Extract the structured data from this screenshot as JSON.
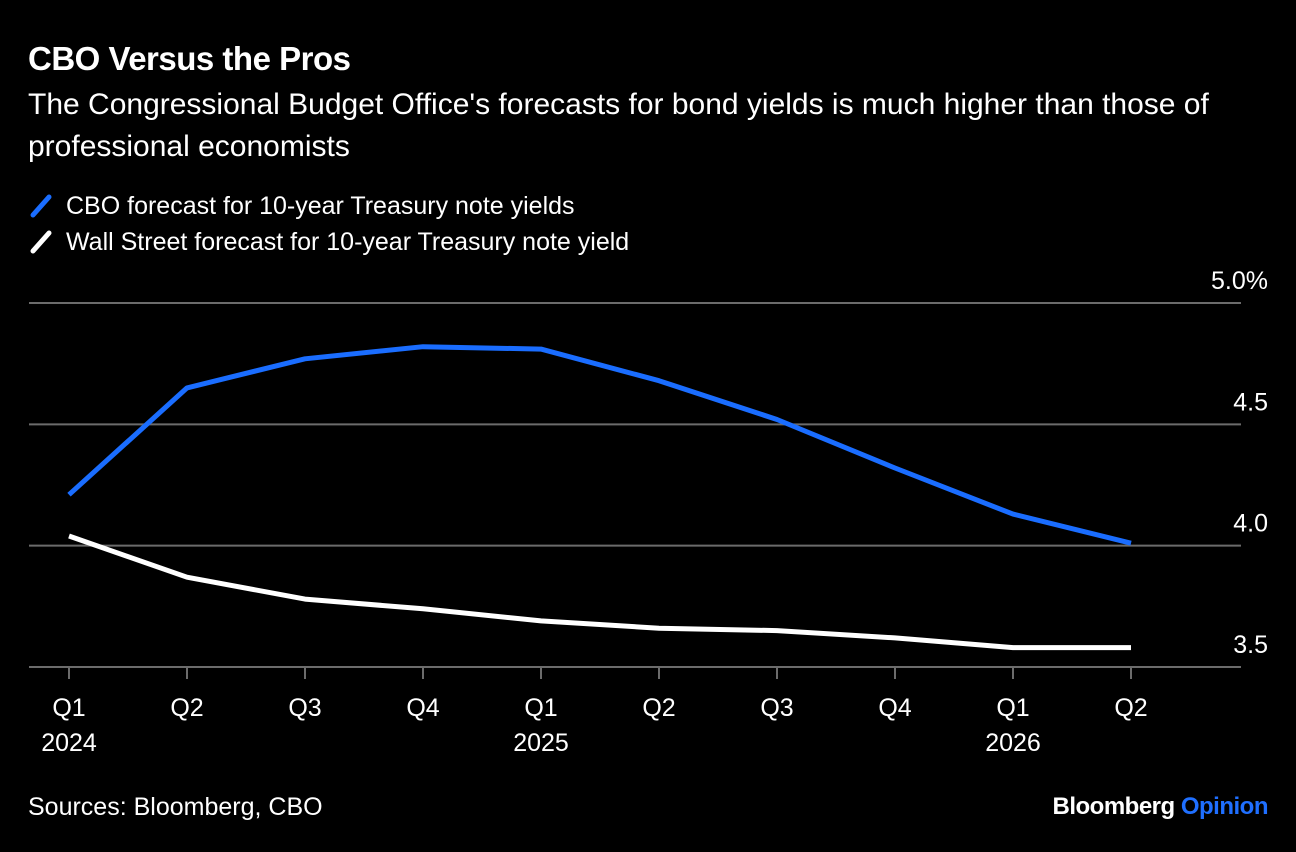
{
  "header": {
    "title": "CBO Versus the Pros",
    "subtitle": "The Congressional Budget Office's forecasts for bond yields is much higher than those of professional economists"
  },
  "legend": {
    "items": [
      {
        "label": "CBO forecast for 10-year Treasury note yields",
        "color": "#1a6dff"
      },
      {
        "label": "Wall Street forecast for 10-year Treasury note yield",
        "color": "#ffffff"
      }
    ]
  },
  "footer": {
    "source": "Sources: Bloomberg, CBO",
    "brand_main": "Bloomberg",
    "brand_accent": "Opinion"
  },
  "colors": {
    "background": "#000000",
    "gridline": "#6b6b6b",
    "cbo": "#1a6dff",
    "wallstreet": "#ffffff",
    "text": "#ffffff",
    "brand_accent": "#1f6fff"
  },
  "chart_data": {
    "type": "line",
    "title": "CBO Versus the Pros",
    "subtitle": "The Congressional Budget Office's forecasts for bond yields is much higher than those of professional economists",
    "categories": [
      "Q1 2024",
      "Q2 2024",
      "Q3 2024",
      "Q4 2024",
      "Q1 2025",
      "Q2 2025",
      "Q3 2025",
      "Q4 2025",
      "Q1 2026",
      "Q2 2026"
    ],
    "x_tick_labels": [
      {
        "quarter": "Q1",
        "year": "2024"
      },
      {
        "quarter": "Q2",
        "year": ""
      },
      {
        "quarter": "Q3",
        "year": ""
      },
      {
        "quarter": "Q4",
        "year": ""
      },
      {
        "quarter": "Q1",
        "year": "2025"
      },
      {
        "quarter": "Q2",
        "year": ""
      },
      {
        "quarter": "Q3",
        "year": ""
      },
      {
        "quarter": "Q4",
        "year": ""
      },
      {
        "quarter": "Q1",
        "year": "2026"
      },
      {
        "quarter": "Q2",
        "year": ""
      }
    ],
    "series": [
      {
        "name": "CBO forecast for 10-year Treasury note yields",
        "color": "#1a6dff",
        "values": [
          4.21,
          4.65,
          4.77,
          4.82,
          4.81,
          4.68,
          4.52,
          4.32,
          4.13,
          4.01
        ]
      },
      {
        "name": "Wall Street forecast for 10-year Treasury note yield",
        "color": "#ffffff",
        "values": [
          4.04,
          3.87,
          3.78,
          3.74,
          3.69,
          3.66,
          3.65,
          3.62,
          3.58,
          3.58
        ]
      }
    ],
    "ylim": [
      3.5,
      5.0
    ],
    "y_ticks": [
      {
        "value": 5.0,
        "label": "5.0%"
      },
      {
        "value": 4.5,
        "label": "4.5"
      },
      {
        "value": 4.0,
        "label": "4.0"
      },
      {
        "value": 3.5,
        "label": "3.5"
      }
    ],
    "y_axis_side": "right",
    "grid": true,
    "legend_position": "top-left",
    "xlabel": "",
    "ylabel": ""
  }
}
